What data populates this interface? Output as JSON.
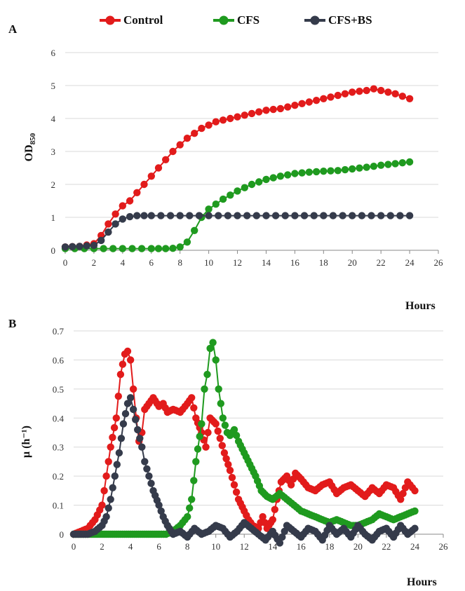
{
  "legend": {
    "items": [
      {
        "label": "Control",
        "color": "#e21b1b"
      },
      {
        "label": "CFS",
        "color": "#1f9a1f"
      },
      {
        "label": "CFS+BS",
        "color": "#353b4b"
      }
    ]
  },
  "panels": {
    "a": {
      "letter": "A",
      "ylabel_main": "OD",
      "ylabel_sub": "850",
      "xlabel": "Hours"
    },
    "b": {
      "letter": "B",
      "ylabel": "μ (h⁻¹)",
      "xlabel": "Hours"
    }
  },
  "chart_data": [
    {
      "type": "scatter",
      "title": "",
      "xlabel": "Hours",
      "ylabel": "OD850",
      "xlim": [
        0,
        26
      ],
      "ylim": [
        0,
        6
      ],
      "xticks": [
        0,
        2,
        4,
        6,
        8,
        10,
        12,
        14,
        16,
        18,
        20,
        22,
        24,
        26
      ],
      "yticks": [
        0,
        1,
        2,
        3,
        4,
        5,
        6
      ],
      "grid": "horizontal",
      "legend": "top",
      "series": [
        {
          "name": "Control",
          "color": "#e21b1b",
          "x": [
            0,
            1,
            2,
            2.5,
            3,
            3.5,
            4,
            4.5,
            5,
            5.5,
            6,
            6.5,
            7,
            7.5,
            8,
            8.5,
            9,
            9.5,
            10,
            10.5,
            11,
            12,
            13,
            14,
            15,
            16,
            17,
            18,
            19,
            20,
            21,
            21.5,
            22,
            23,
            24
          ],
          "y": [
            0.1,
            0.12,
            0.2,
            0.45,
            0.8,
            1.1,
            1.35,
            1.5,
            1.75,
            2.0,
            2.25,
            2.5,
            2.75,
            3.0,
            3.2,
            3.4,
            3.55,
            3.7,
            3.8,
            3.9,
            3.95,
            4.05,
            4.15,
            4.25,
            4.3,
            4.4,
            4.5,
            4.6,
            4.7,
            4.8,
            4.85,
            4.9,
            4.85,
            4.75,
            4.6
          ]
        },
        {
          "name": "CFS",
          "color": "#1f9a1f",
          "x": [
            0,
            2,
            4,
            6,
            7,
            7.5,
            8,
            8.5,
            9,
            9.5,
            10,
            10.5,
            11,
            12,
            13,
            14,
            15,
            16,
            17,
            18,
            19,
            20,
            21,
            22,
            23,
            24
          ],
          "y": [
            0.05,
            0.05,
            0.05,
            0.05,
            0.05,
            0.06,
            0.1,
            0.25,
            0.6,
            1.0,
            1.25,
            1.4,
            1.55,
            1.8,
            2.0,
            2.15,
            2.25,
            2.33,
            2.37,
            2.4,
            2.42,
            2.47,
            2.52,
            2.58,
            2.63,
            2.68
          ]
        },
        {
          "name": "CFS+BS",
          "color": "#353b4b",
          "x": [
            0,
            1,
            2,
            2.5,
            3,
            3.5,
            4,
            4.5,
            5,
            6,
            8,
            10,
            12,
            14,
            16,
            18,
            20,
            22,
            24
          ],
          "y": [
            0.1,
            0.12,
            0.15,
            0.3,
            0.55,
            0.8,
            0.95,
            1.02,
            1.05,
            1.05,
            1.05,
            1.05,
            1.05,
            1.05,
            1.05,
            1.05,
            1.05,
            1.05,
            1.05
          ]
        }
      ]
    },
    {
      "type": "line",
      "title": "",
      "xlabel": "Hours",
      "ylabel": "μ (h⁻¹)",
      "xlim": [
        0,
        26
      ],
      "ylim": [
        0,
        0.7
      ],
      "xticks": [
        0,
        2,
        4,
        6,
        8,
        10,
        12,
        14,
        16,
        18,
        20,
        22,
        24,
        26
      ],
      "yticks": [
        0,
        0.1,
        0.2,
        0.3,
        0.4,
        0.5,
        0.6,
        0.7
      ],
      "ytick_labels": [
        "0",
        "0.1",
        "0.2",
        "0.3",
        "0.4",
        "0.5",
        "0.6",
        "0.7"
      ],
      "grid": "horizontal",
      "series": [
        {
          "name": "Control",
          "color": "#e21b1b",
          "x": [
            0,
            0.5,
            1,
            1.5,
            2,
            2.3,
            2.6,
            3,
            3.3,
            3.6,
            3.8,
            4,
            4.2,
            4.4,
            4.6,
            4.8,
            5,
            5.3,
            5.6,
            6,
            6.3,
            6.6,
            7,
            7.5,
            8,
            8.3,
            8.6,
            9,
            9.3,
            9.6,
            10,
            10.3,
            10.6,
            11,
            11.3,
            11.6,
            12,
            12.3,
            12.6,
            13,
            13.3,
            13.6,
            14,
            14.3,
            14.6,
            15,
            15.3,
            15.6,
            16,
            16.5,
            17,
            17.5,
            18,
            18.5,
            19,
            19.5,
            20,
            20.5,
            21,
            21.5,
            22,
            22.5,
            23,
            23.5,
            24
          ],
          "y": [
            0,
            0.01,
            0.02,
            0.05,
            0.1,
            0.2,
            0.3,
            0.4,
            0.55,
            0.62,
            0.63,
            0.6,
            0.5,
            0.4,
            0.32,
            0.35,
            0.43,
            0.45,
            0.47,
            0.44,
            0.45,
            0.42,
            0.43,
            0.42,
            0.45,
            0.47,
            0.4,
            0.35,
            0.3,
            0.4,
            0.38,
            0.33,
            0.28,
            0.22,
            0.17,
            0.12,
            0.08,
            0.05,
            0.03,
            0.02,
            0.06,
            0.02,
            0.05,
            0.12,
            0.18,
            0.2,
            0.17,
            0.21,
            0.19,
            0.16,
            0.15,
            0.17,
            0.18,
            0.14,
            0.16,
            0.17,
            0.15,
            0.13,
            0.16,
            0.14,
            0.17,
            0.16,
            0.12,
            0.18,
            0.15
          ]
        },
        {
          "name": "CFS",
          "color": "#1f9a1f",
          "x": [
            0,
            1,
            2,
            3,
            4,
            5,
            6,
            6.5,
            7,
            7.5,
            8,
            8.3,
            8.6,
            9,
            9.2,
            9.4,
            9.6,
            9.8,
            10,
            10.2,
            10.5,
            10.8,
            11,
            11.3,
            11.6,
            12,
            12.4,
            12.8,
            13.2,
            13.6,
            14,
            14.5,
            15,
            15.5,
            16,
            16.5,
            17,
            17.5,
            18,
            18.5,
            19,
            19.5,
            20,
            20.5,
            21,
            21.5,
            22,
            22.5,
            23,
            23.5,
            24
          ],
          "y": [
            0,
            0,
            0,
            0,
            0,
            0,
            0,
            0,
            0.01,
            0.03,
            0.06,
            0.12,
            0.25,
            0.38,
            0.5,
            0.55,
            0.64,
            0.66,
            0.6,
            0.5,
            0.4,
            0.35,
            0.34,
            0.36,
            0.32,
            0.28,
            0.24,
            0.2,
            0.15,
            0.13,
            0.12,
            0.14,
            0.12,
            0.1,
            0.08,
            0.07,
            0.06,
            0.05,
            0.04,
            0.05,
            0.04,
            0.03,
            0.03,
            0.04,
            0.05,
            0.07,
            0.06,
            0.05,
            0.06,
            0.07,
            0.08
          ]
        },
        {
          "name": "CFS+BS",
          "color": "#353b4b",
          "x": [
            0,
            0.5,
            1,
            1.5,
            2,
            2.3,
            2.6,
            2.9,
            3.2,
            3.5,
            3.8,
            4,
            4.2,
            4.5,
            4.8,
            5,
            5.3,
            5.6,
            6,
            6.3,
            6.6,
            7,
            7.5,
            8,
            8.5,
            9,
            9.5,
            10,
            10.5,
            11,
            11.5,
            12,
            12.5,
            13,
            13.5,
            14,
            14.5,
            15,
            15.5,
            16,
            16.5,
            17,
            17.5,
            18,
            18.5,
            19,
            19.5,
            20,
            20.5,
            21,
            21.5,
            22,
            22.5,
            23,
            23.5,
            24
          ],
          "y": [
            0,
            0,
            0,
            0.01,
            0.03,
            0.06,
            0.12,
            0.2,
            0.28,
            0.38,
            0.45,
            0.47,
            0.43,
            0.36,
            0.3,
            0.25,
            0.2,
            0.15,
            0.1,
            0.06,
            0.03,
            0,
            0.01,
            -0.01,
            0.02,
            0,
            0.01,
            0.03,
            0.02,
            -0.01,
            0.01,
            0.04,
            0.02,
            0,
            -0.02,
            0.01,
            -0.03,
            0.03,
            0.01,
            -0.01,
            0.02,
            0.01,
            -0.02,
            0.03,
            0,
            0.02,
            -0.01,
            0.03,
            0,
            -0.02,
            0.01,
            0.02,
            -0.01,
            0.03,
            0,
            0.02
          ]
        }
      ]
    }
  ]
}
